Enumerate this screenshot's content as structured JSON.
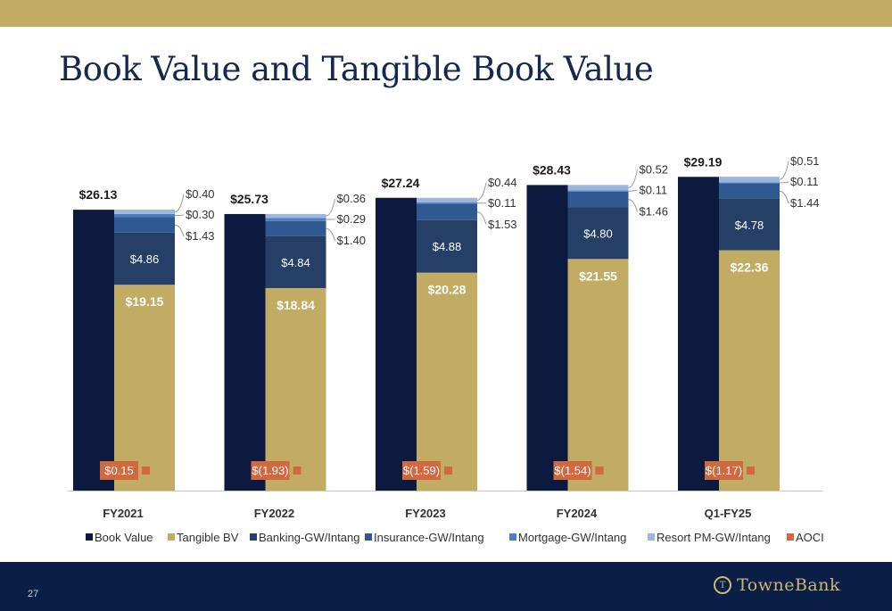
{
  "slide": {
    "title": "Book Value and Tangible Book Value",
    "page_number": "27",
    "logo_text": "TowneBank",
    "colors": {
      "band": "#c2ab62",
      "title": "#16284d",
      "footer": "#0b1e45"
    }
  },
  "chart_data": {
    "type": "bar",
    "title": "",
    "xlabel": "",
    "ylabel": "",
    "ylim": [
      0,
      30
    ],
    "grid": false,
    "legend_position": "bottom",
    "categories": [
      "FY2021",
      "FY2022",
      "FY2023",
      "FY2024",
      "Q1-FY25"
    ],
    "book_value": {
      "name": "Book Value",
      "values": [
        26.13,
        25.73,
        27.24,
        28.43,
        29.19
      ],
      "labels": [
        "$26.13",
        "$25.73",
        "$27.24",
        "$28.43",
        "$29.19"
      ],
      "color": "#0b1a3e"
    },
    "stack": [
      {
        "name": "Tangible BV",
        "color": "#c2ab62",
        "values": [
          19.15,
          18.84,
          20.28,
          21.55,
          22.36
        ],
        "labels": [
          "$19.15",
          "$18.84",
          "$20.28",
          "$21.55",
          "$22.36"
        ]
      },
      {
        "name": "Banking-GW/Intang",
        "color": "#253f66",
        "values": [
          4.86,
          4.84,
          4.88,
          4.8,
          4.78
        ],
        "labels": [
          "$4.86",
          "$4.84",
          "$4.88",
          "$4.80",
          "$4.78"
        ]
      },
      {
        "name": "Insurance-GW/Intang",
        "color": "#2f5990",
        "values": [
          1.43,
          1.4,
          1.53,
          1.46,
          1.44
        ],
        "labels": [
          "$1.43",
          "$1.40",
          "$1.53",
          "$1.46",
          "$1.44"
        ]
      },
      {
        "name": "Mortgage-GW/Intang",
        "color": "#4d7ec0",
        "values": [
          0.3,
          0.29,
          0.11,
          0.11,
          0.11
        ],
        "labels": [
          "$0.30",
          "$0.29",
          "$0.11",
          "$0.11",
          "$0.11"
        ]
      },
      {
        "name": "Resort PM-GW/Intang",
        "color": "#9bb8dc",
        "values": [
          0.4,
          0.36,
          0.44,
          0.52,
          0.51
        ],
        "labels": [
          "$0.40",
          "$0.36",
          "$0.44",
          "$0.52",
          "$0.51"
        ]
      }
    ],
    "aoci": {
      "name": "AOCI",
      "color": "#d0693e",
      "values": [
        0.15,
        -1.93,
        -1.59,
        -1.54,
        -1.17
      ],
      "labels": [
        "$0.15",
        "$(1.93)",
        "$(1.59)",
        "$(1.54)",
        "$(1.17)"
      ]
    }
  }
}
